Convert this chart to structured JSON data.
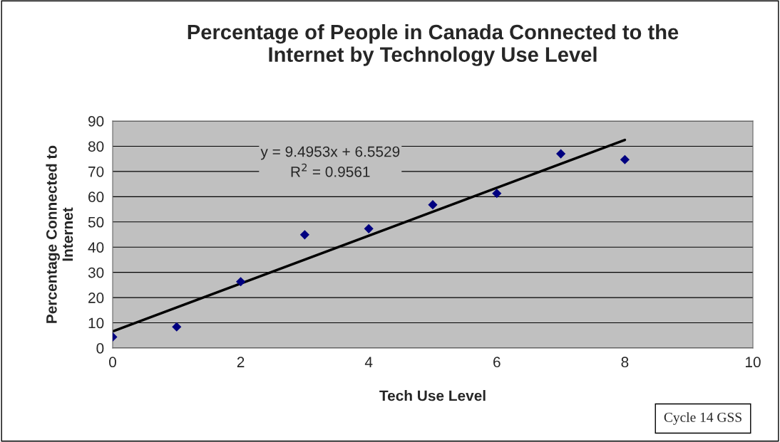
{
  "chart_data": {
    "type": "scatter",
    "title": "Percentage of People in Canada Connected to the\nInternet by Technology Use Level",
    "xlabel": "Tech Use Level",
    "ylabel": "Percentage Connected to\nInternet",
    "series": [
      {
        "color": "#000080",
        "marker": "diamond",
        "x": [
          0,
          1,
          2,
          3,
          4,
          5,
          6,
          7,
          8
        ],
        "values": [
          4.4,
          8.4,
          26.3,
          44.9,
          47.3,
          56.8,
          61.3,
          77.0,
          74.7
        ]
      },
      {
        "type": "line",
        "color": "#000000",
        "marker": "none",
        "line_style": "solid",
        "x": [
          0,
          8
        ],
        "values": [
          6.6,
          82.5
        ]
      }
    ],
    "annotations": [
      "y = 9.4953x + 6.5529\nR$^{2}$ = 0.9561",
      "Cycle 14 GSS"
    ],
    "xlim": [
      0,
      10
    ],
    "xticks": [
      0,
      2,
      4,
      6,
      8,
      10
    ],
    "ylim": [
      0,
      90
    ],
    "yticks": [
      0,
      10,
      20,
      30,
      40,
      50,
      60,
      70,
      80,
      90
    ],
    "grid": "y",
    "legend": false
  }
}
